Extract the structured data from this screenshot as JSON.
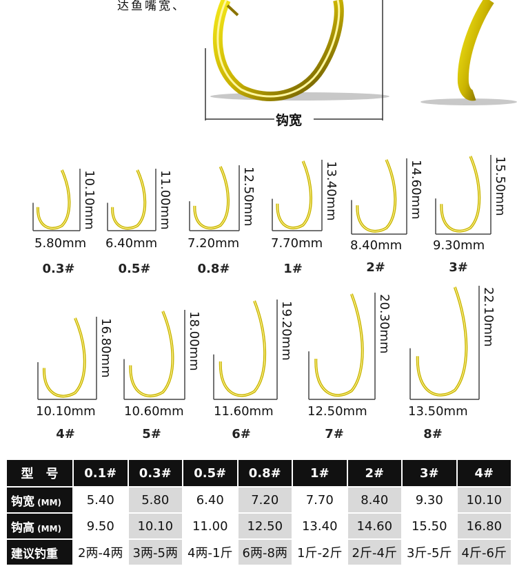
{
  "top": {
    "note": "达鱼嘴宽、",
    "width_label": "钩宽"
  },
  "hooks": [
    {
      "size": "0.3#",
      "width": "5.80mm",
      "height": "10.10mm"
    },
    {
      "size": "0.5#",
      "width": "6.40mm",
      "height": "11.00mm"
    },
    {
      "size": "0.8#",
      "width": "7.20mm",
      "height": "12.50mm"
    },
    {
      "size": "1#",
      "width": "7.70mm",
      "height": "13.40mm"
    },
    {
      "size": "2#",
      "width": "8.40mm",
      "height": "14.60mm"
    },
    {
      "size": "3#",
      "width": "9.30mm",
      "height": "15.50mm"
    },
    {
      "size": "4#",
      "width": "10.10mm",
      "height": "16.80mm"
    },
    {
      "size": "5#",
      "width": "10.60mm",
      "height": "18.00mm"
    },
    {
      "size": "6#",
      "width": "11.60mm",
      "height": "19.20mm"
    },
    {
      "size": "7#",
      "width": "12.50mm",
      "height": "20.30mm"
    },
    {
      "size": "8#",
      "width": "13.50mm",
      "height": "22.10mm"
    }
  ],
  "table": {
    "header": [
      "型　号",
      "0.1#",
      "0.3#",
      "0.5#",
      "0.8#",
      "1#",
      "2#",
      "3#",
      "4#"
    ],
    "rows": [
      {
        "label": "钩宽",
        "unit": "(MM)",
        "values": [
          "5.40",
          "5.80",
          "6.40",
          "7.20",
          "7.70",
          "8.40",
          "9.30",
          "10.10"
        ]
      },
      {
        "label": "钩高",
        "unit": "(MM)",
        "values": [
          "9.50",
          "10.10",
          "11.00",
          "12.50",
          "13.40",
          "14.60",
          "15.50",
          "16.80"
        ]
      },
      {
        "label": "建议钓重",
        "unit": "",
        "values": [
          "2两-4两",
          "3两-5两",
          "4两-1斤",
          "6两-8两",
          "1斤-2斤",
          "2斤-4斤",
          "3斤-5斤",
          "4斤-6斤"
        ]
      }
    ]
  },
  "colors": {
    "hook_gold": "#c8b400",
    "hook_dark": "#6b5a00",
    "table_head": "#111111",
    "shade": "#d9d9d9"
  }
}
